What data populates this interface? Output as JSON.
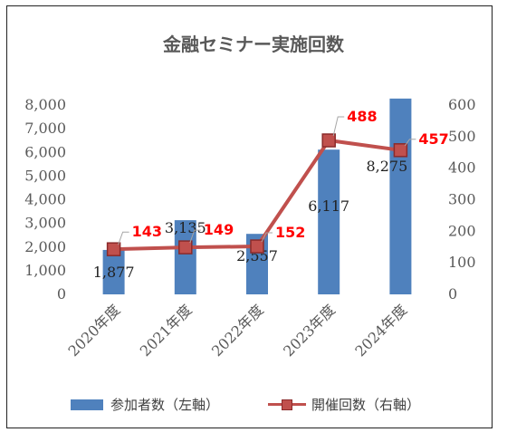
{
  "chart_data": {
    "type": "bar",
    "title": "金融セミナー実施回数",
    "categories": [
      "2020年度",
      "2021年度",
      "2022年度",
      "2023年度",
      "2024年度"
    ],
    "series": [
      {
        "name": "参加者数（左軸）",
        "type": "bar",
        "axis": "left",
        "values": [
          1877,
          3135,
          2557,
          6117,
          8275
        ],
        "labels": [
          "1,877",
          "3,135",
          "2,557",
          "6,117",
          "8,275"
        ],
        "color": "#4f81bd"
      },
      {
        "name": "開催回数（右軸）",
        "type": "line",
        "axis": "right",
        "values": [
          143,
          149,
          152,
          488,
          457
        ],
        "labels": [
          "143",
          "149",
          "152",
          "488",
          "457"
        ],
        "color": "#c0504d",
        "label_color": "#ff0000"
      }
    ],
    "y_left": {
      "lim": [
        0,
        8000
      ],
      "ticks": [
        "0",
        "1,000",
        "2,000",
        "3,000",
        "4,000",
        "5,000",
        "6,000",
        "7,000",
        "8,000"
      ]
    },
    "y_right": {
      "lim": [
        0,
        600
      ],
      "ticks": [
        "0",
        "100",
        "200",
        "300",
        "400",
        "500",
        "600"
      ]
    },
    "grid": false,
    "legend": "bottom"
  }
}
